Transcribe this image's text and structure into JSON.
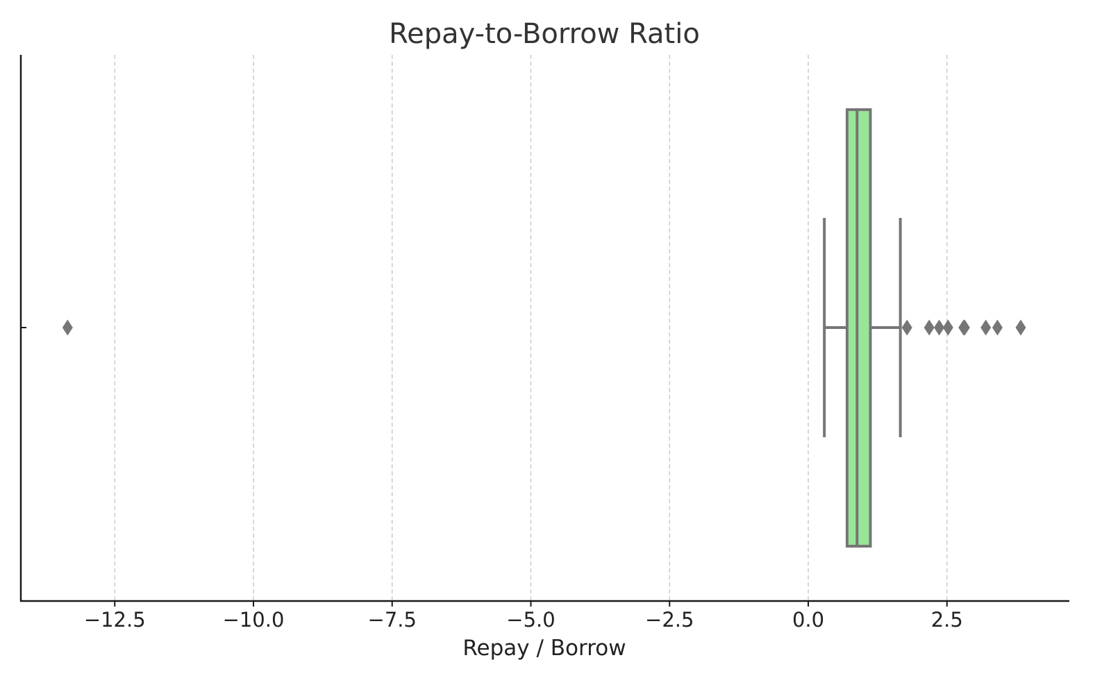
{
  "chart_data": {
    "type": "box",
    "title": "Repay-to-Borrow Ratio",
    "xlabel": "Repay / Borrow",
    "ylabel": "",
    "xlim": [
      -14.2,
      4.7
    ],
    "xticks": [
      -12.5,
      -10.0,
      -7.5,
      -5.0,
      -2.5,
      0.0,
      2.5
    ],
    "xtick_labels": [
      "−12.5",
      "−10.0",
      "−7.5",
      "−5.0",
      "−2.5",
      "0.0",
      "2.5"
    ],
    "grid": "vertical dashed",
    "orientation": "horizontal",
    "box": {
      "whisker_low": 0.29,
      "q1": 0.7,
      "median": 0.88,
      "q3": 1.12,
      "whisker_high": 1.66
    },
    "outliers": [
      -13.35,
      1.78,
      2.18,
      2.36,
      2.52,
      2.8,
      2.82,
      3.2,
      3.41,
      3.83
    ],
    "colors": {
      "box_fill": "#98e698",
      "box_edge": "#767676",
      "outlier": "#767676"
    }
  }
}
